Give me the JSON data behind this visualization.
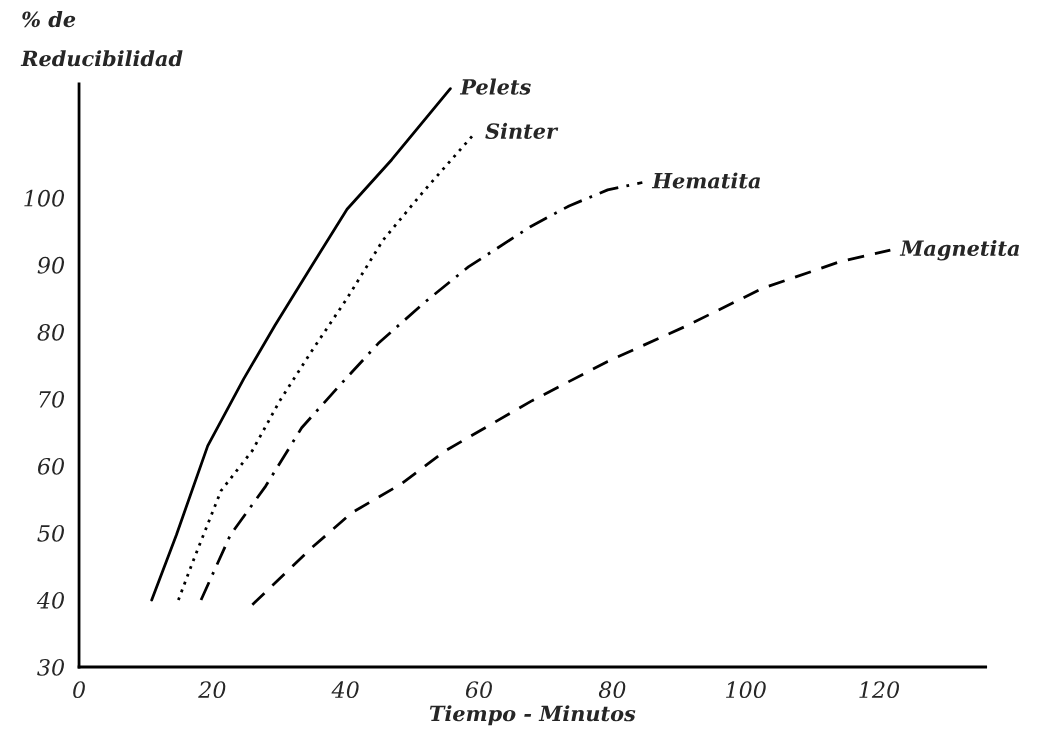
{
  "chart_data": {
    "type": "line",
    "xlabel": "Tiempo - Minutos",
    "ylabel": "% de\nReducibilidad",
    "xlim": [
      0,
      136
    ],
    "ylim": [
      30,
      117
    ],
    "xticks": [
      0,
      20,
      40,
      60,
      80,
      100,
      120
    ],
    "yticks": [
      30,
      40,
      50,
      60,
      70,
      80,
      90,
      100
    ],
    "grid": false,
    "legend": false,
    "marker": "none",
    "series": [
      {
        "name": "Pelets",
        "color": "#000000",
        "line_style": "solid",
        "x": [
          10.9,
          14.6,
          19.3,
          24.7,
          29.4,
          34.8,
          40.2,
          46.9,
          55.7
        ],
        "values": [
          40,
          49.7,
          63,
          73,
          81,
          89.7,
          98.3,
          105.7,
          116.3
        ]
      },
      {
        "name": "Sinter",
        "color": "#000000",
        "line_style": "dotted",
        "x": [
          14.9,
          17.3,
          21.3,
          26,
          30.1,
          34.8,
          40.2,
          45.6,
          51.7,
          59.4
        ],
        "values": [
          40,
          46.3,
          56.3,
          62.3,
          69.7,
          77,
          85,
          93.7,
          101,
          109.7
        ]
      },
      {
        "name": "Hematita",
        "color": "#000000",
        "line_style": "dashdot",
        "x": [
          18.3,
          22.7,
          28,
          33.4,
          38.8,
          44.9,
          51.7,
          58.4,
          67.7,
          73.5,
          79.3,
          84.5
        ],
        "values": [
          40,
          49.7,
          57,
          65.7,
          71.7,
          78.3,
          84.3,
          89.7,
          95.7,
          98.8,
          101.2,
          102.3
        ]
      },
      {
        "name": "Magnetita",
        "color": "#000000",
        "line_style": "dashed",
        "x": [
          26,
          34.8,
          40.9,
          48.3,
          55,
          67.7,
          79.3,
          90.9,
          102.5,
          114.2,
          121.7
        ],
        "values": [
          39.3,
          47.7,
          53,
          57.3,
          62.3,
          69.6,
          75.6,
          80.8,
          86.5,
          90.5,
          92.2
        ]
      }
    ]
  }
}
